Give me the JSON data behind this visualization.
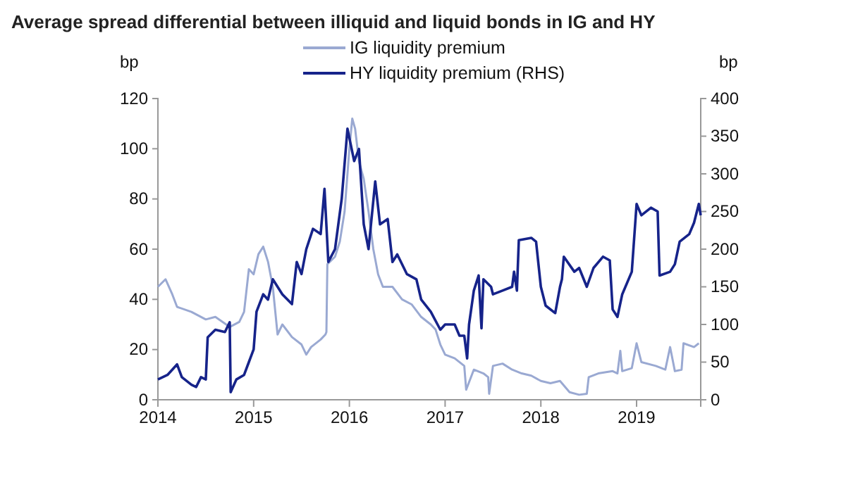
{
  "chart_data": {
    "type": "line",
    "title": "Average spread differential between illiquid and liquid bonds in IG and HY",
    "ylabel": "bp",
    "y2label": "bp",
    "xlim": [
      2014,
      2019.67
    ],
    "xticks": [
      2014,
      2015,
      2016,
      2017,
      2018,
      2019
    ],
    "ylim": [
      0,
      120
    ],
    "yticks": [
      0,
      20,
      40,
      60,
      80,
      100,
      120
    ],
    "y2lim": [
      0,
      400
    ],
    "y2ticks": [
      0,
      50,
      100,
      150,
      200,
      250,
      300,
      350,
      400
    ],
    "legend": "top",
    "grid": false,
    "line_style": "solid",
    "marker": "none",
    "series": [
      {
        "name": "IG liquidity premium",
        "color": "#9aa9d2",
        "x": [
          2014,
          2014.08,
          2014.15,
          2014.2,
          2014.35,
          2014.5,
          2014.6,
          2014.75,
          2014.85,
          2014.9,
          2014.95,
          2015,
          2015.05,
          2015.1,
          2015.15,
          2015.2,
          2015.25,
          2015.3,
          2015.4,
          2015.5,
          2015.55,
          2015.6,
          2015.7,
          2015.75,
          2015.76,
          2015.77,
          2015.85,
          2015.9,
          2015.95,
          2016,
          2016.03,
          2016.06,
          2016.1,
          2016.15,
          2016.2,
          2016.25,
          2016.3,
          2016.35,
          2016.45,
          2016.55,
          2016.65,
          2016.75,
          2016.85,
          2016.9,
          2016.95,
          2017,
          2017.1,
          2017.2,
          2017.22,
          2017.3,
          2017.4,
          2017.45,
          2017.46,
          2017.5,
          2017.6,
          2017.7,
          2017.8,
          2017.9,
          2018,
          2018.1,
          2018.2,
          2018.3,
          2018.4,
          2018.48,
          2018.5,
          2018.6,
          2018.75,
          2018.8,
          2018.83,
          2018.85,
          2018.95,
          2019,
          2019.05,
          2019.2,
          2019.3,
          2019.35,
          2019.4,
          2019.47,
          2019.49,
          2019.6,
          2019.65
        ],
        "values": [
          45,
          48,
          42,
          37,
          35,
          32,
          33,
          29,
          31,
          35,
          52,
          50,
          58,
          61,
          55,
          45,
          26,
          30,
          25,
          22,
          18,
          21,
          24,
          26,
          27,
          54,
          57,
          63,
          75,
          100,
          112,
          108,
          95,
          88,
          75,
          60,
          50,
          45,
          45,
          40,
          38,
          33,
          30,
          28,
          22,
          18,
          16.5,
          13.5,
          4,
          12,
          10.5,
          9,
          2.4,
          13.5,
          14.4,
          12,
          10.5,
          9.6,
          7.5,
          6.6,
          7.5,
          3,
          2,
          2.4,
          9,
          10.5,
          11.4,
          10.5,
          19.5,
          11.4,
          12.6,
          22.5,
          15,
          13.5,
          12,
          21,
          11.4,
          12,
          22.5,
          21,
          22.5
        ]
      },
      {
        "name": "HY liquidity premium (RHS)",
        "color": "#16238a",
        "axis": "y2",
        "x": [
          2014,
          2014.1,
          2014.2,
          2014.25,
          2014.35,
          2014.4,
          2014.45,
          2014.5,
          2014.52,
          2014.6,
          2014.7,
          2014.75,
          2014.76,
          2014.82,
          2014.9,
          2014.95,
          2015,
          2015.03,
          2015.1,
          2015.15,
          2015.2,
          2015.3,
          2015.4,
          2015.45,
          2015.5,
          2015.55,
          2015.62,
          2015.7,
          2015.74,
          2015.78,
          2015.85,
          2015.92,
          2015.98,
          2016.05,
          2016.1,
          2016.15,
          2016.2,
          2016.27,
          2016.32,
          2016.4,
          2016.45,
          2016.5,
          2016.6,
          2016.7,
          2016.75,
          2016.85,
          2016.95,
          2017,
          2017.1,
          2017.15,
          2017.2,
          2017.23,
          2017.25,
          2017.3,
          2017.35,
          2017.38,
          2017.4,
          2017.48,
          2017.5,
          2017.6,
          2017.7,
          2017.72,
          2017.75,
          2017.77,
          2017.9,
          2017.95,
          2018,
          2018.05,
          2018.15,
          2018.2,
          2018.22,
          2018.24,
          2018.35,
          2018.4,
          2018.48,
          2018.55,
          2018.65,
          2018.72,
          2018.75,
          2018.8,
          2018.85,
          2018.95,
          2019,
          2019.05,
          2019.15,
          2019.22,
          2019.24,
          2019.35,
          2019.4,
          2019.45,
          2019.55,
          2019.6,
          2019.65,
          2019.67
        ],
        "values": [
          27,
          33,
          47,
          30,
          20,
          17,
          30,
          27,
          83,
          93,
          90,
          103,
          10,
          27,
          33,
          50,
          67,
          117,
          140,
          133,
          160,
          140,
          127,
          183,
          167,
          200,
          227,
          220,
          280,
          183,
          200,
          267,
          360,
          317,
          333,
          233,
          200,
          290,
          233,
          240,
          183,
          193,
          167,
          160,
          133,
          117,
          93,
          100,
          100,
          85,
          85,
          55,
          100,
          145,
          165,
          95,
          160,
          150,
          140,
          145,
          150,
          170,
          145,
          212,
          215,
          210,
          150,
          125,
          115,
          150,
          160,
          190,
          170,
          175,
          150,
          175,
          190,
          185,
          120,
          110,
          140,
          170,
          260,
          245,
          255,
          250,
          165,
          170,
          180,
          210,
          220,
          235,
          260,
          245
        ]
      }
    ]
  }
}
